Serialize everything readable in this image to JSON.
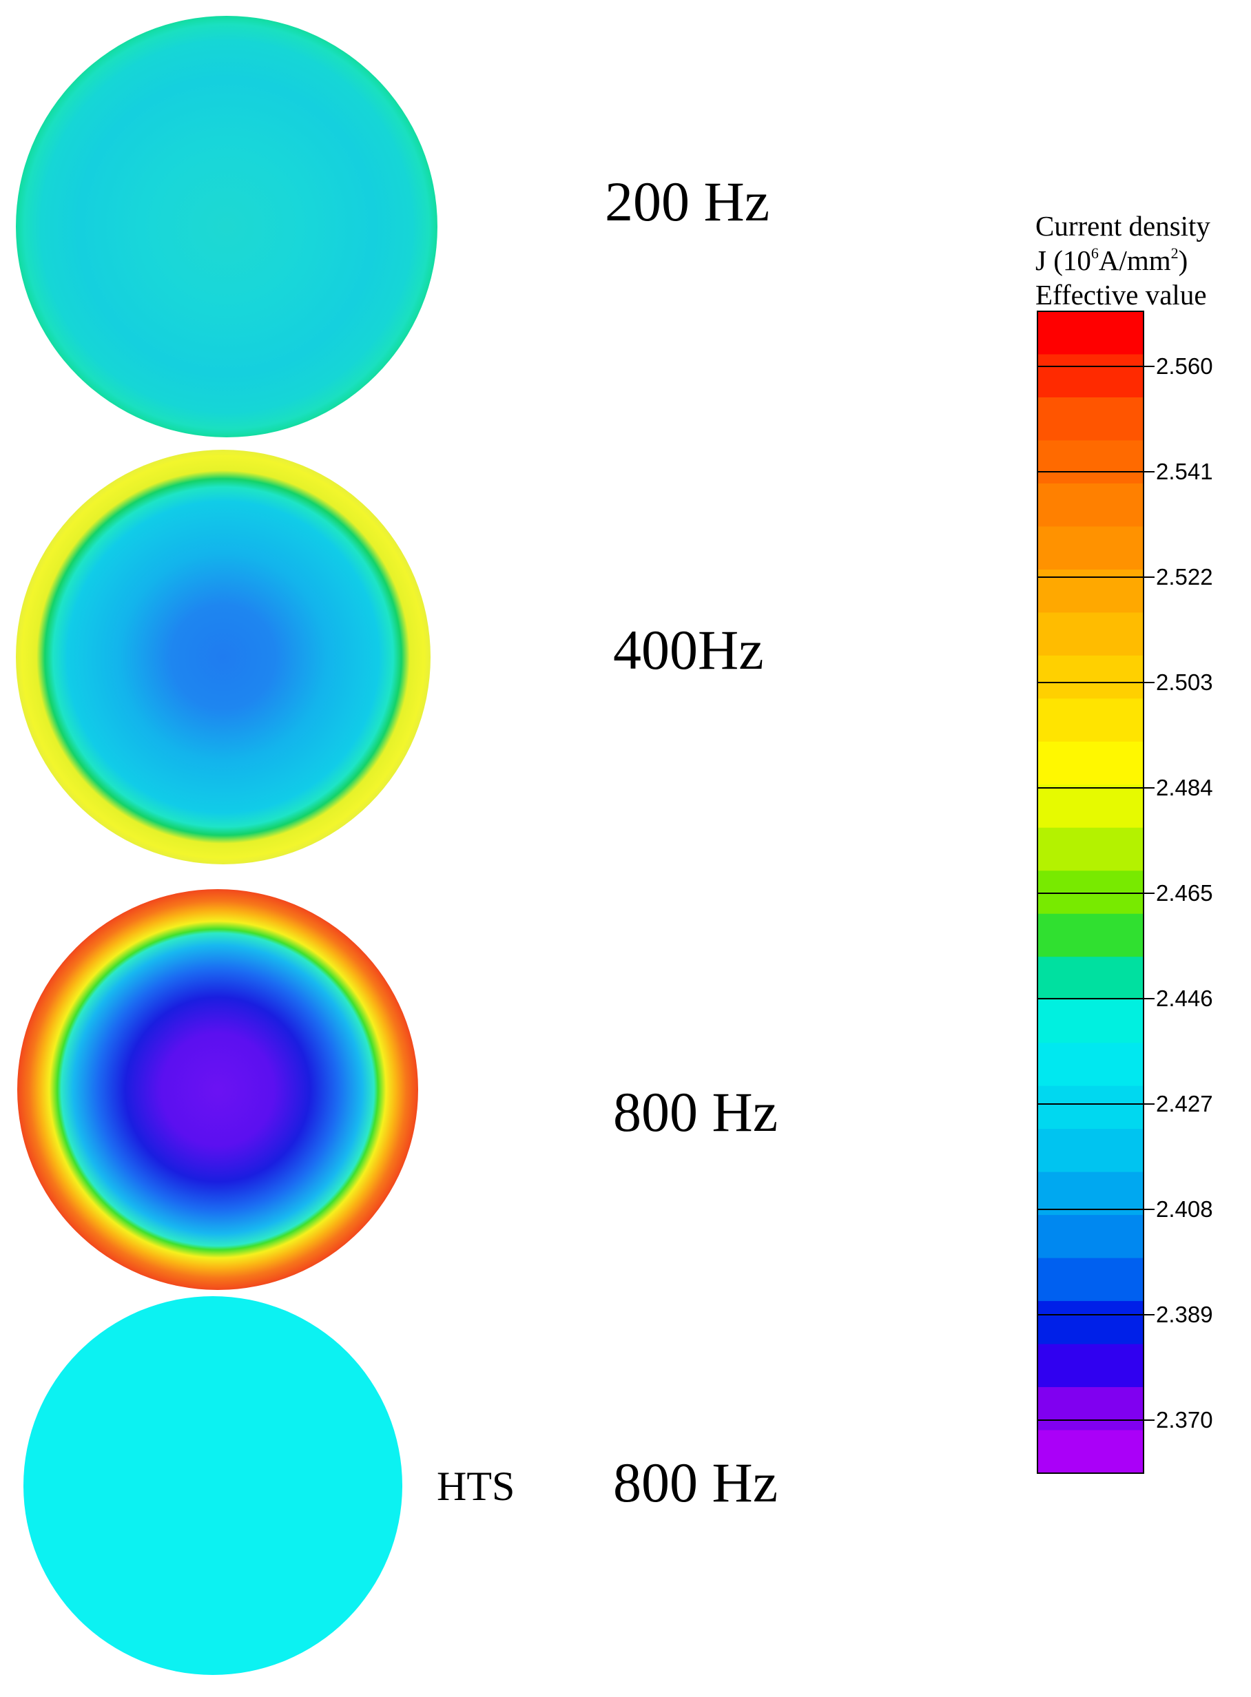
{
  "panels": [
    {
      "label": "200 Hz",
      "tag": "",
      "gradient": [
        [
          "#1ed8d2",
          0
        ],
        [
          "#19d7d9",
          35
        ],
        [
          "#15d0de",
          70
        ],
        [
          "#16d6d6",
          88
        ],
        [
          "#1ae0c0",
          96
        ],
        [
          "#12dca0",
          100
        ]
      ]
    },
    {
      "label": "400Hz",
      "tag": "",
      "gradient": [
        [
          "#1f7cf0",
          0
        ],
        [
          "#1e86f0",
          25
        ],
        [
          "#13b4ec",
          50
        ],
        [
          "#11cce8",
          75
        ],
        [
          "#1ee4c6",
          82
        ],
        [
          "#14d268",
          86
        ],
        [
          "#e6f22a",
          90
        ],
        [
          "#f2f62c",
          97
        ],
        [
          "#e8f03a",
          100
        ]
      ]
    },
    {
      "label": "800 Hz",
      "tag": "",
      "gradient": [
        [
          "#6b12f3",
          0
        ],
        [
          "#5b10f0",
          28
        ],
        [
          "#1a1ee0",
          46
        ],
        [
          "#1b6bf2",
          60
        ],
        [
          "#18b8f0",
          72
        ],
        [
          "#2de8c8",
          78
        ],
        [
          "#40e02e",
          80
        ],
        [
          "#f6f01e",
          84
        ],
        [
          "#fbb414",
          89
        ],
        [
          "#f7771a",
          94
        ],
        [
          "#f2481c",
          100
        ]
      ]
    },
    {
      "label": "800 Hz",
      "tag": "HTS",
      "gradient": [
        [
          "#0cf2f2",
          0
        ],
        [
          "#0cf2f2",
          100
        ]
      ]
    }
  ],
  "legend": {
    "title_line1": "Current density",
    "title_line2_pre": "J (10",
    "title_line2_exp1": "6",
    "title_line2_mid": "A/mm",
    "title_line2_exp2": "2",
    "title_line2_post": ")",
    "title_line3": "Effective value",
    "ticks": [
      "2.560",
      "2.541",
      "2.522",
      "2.503",
      "2.484",
      "2.465",
      "2.446",
      "2.427",
      "2.408",
      "2.389",
      "2.370"
    ],
    "colors": [
      "#ff0000",
      "#ff2a00",
      "#ff5500",
      "#ff6a00",
      "#ff8000",
      "#ff9200",
      "#ffa800",
      "#ffbc00",
      "#ffd000",
      "#ffe400",
      "#fff800",
      "#e6fa00",
      "#b4f200",
      "#78ea00",
      "#30e030",
      "#00e0a0",
      "#00f0e0",
      "#00e8f0",
      "#00d8f0",
      "#00c4f0",
      "#00a8f0",
      "#0088f0",
      "#0060f0",
      "#0020e8",
      "#3000f0",
      "#8000f0",
      "#aa00f8"
    ]
  }
}
